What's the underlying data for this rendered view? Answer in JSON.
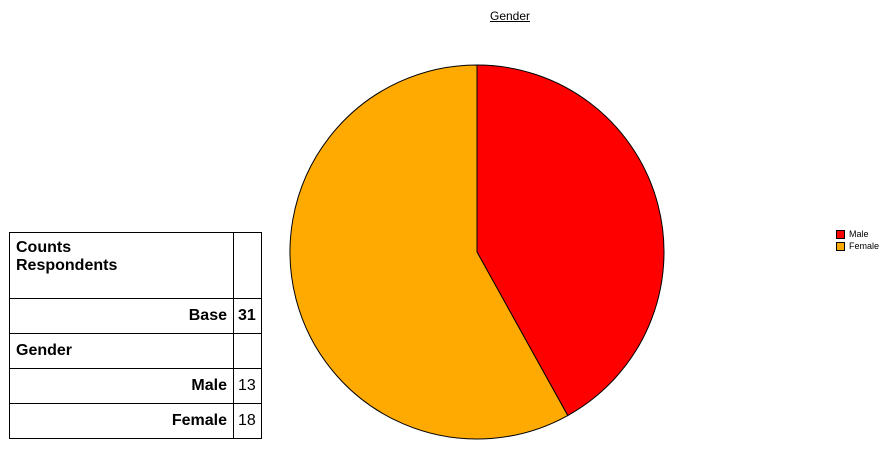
{
  "chart_data": {
    "type": "pie",
    "title": "Gender",
    "categories": [
      "Male",
      "Female"
    ],
    "values": [
      13,
      18
    ],
    "colors": [
      "#ff0000",
      "#ffaa00"
    ],
    "legend": "right",
    "start_angle": "12 o'clock, clockwise"
  },
  "table": {
    "header_line1": "Counts",
    "header_line2": "Respondents",
    "base_label": "Base",
    "base_value": "31",
    "section_label": "Gender",
    "rows": [
      {
        "label": "Male",
        "value": "13"
      },
      {
        "label": "Female",
        "value": "18"
      }
    ]
  }
}
